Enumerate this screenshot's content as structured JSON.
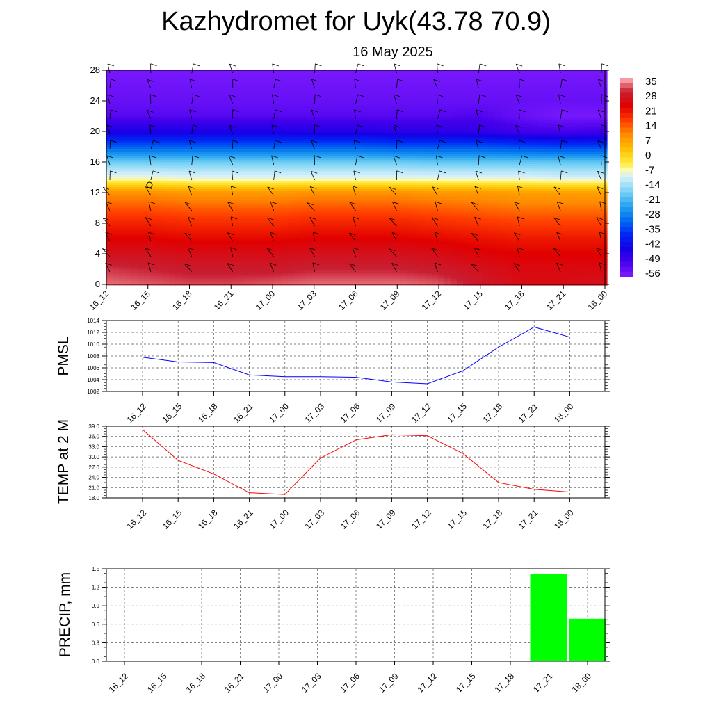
{
  "title": "Kazhydromet for Uyk(43.78 70.9)",
  "subtitle": "16 May 2025",
  "chart_data": [
    {
      "type": "heatmap",
      "name": "temperature-height-section",
      "x_categories": [
        "16_12",
        "16_15",
        "16_18",
        "16_21",
        "17_00",
        "17_03",
        "17_06",
        "17_09",
        "17_12",
        "17_15",
        "17_18",
        "17_21",
        "18_00"
      ],
      "y_ticks": [
        0,
        4,
        8,
        12,
        16,
        20,
        24,
        28
      ],
      "ylim": [
        0,
        28
      ],
      "colorbar": {
        "labels": [
          "35",
          "28",
          "21",
          "14",
          "7",
          "0",
          "-7",
          "-14",
          "-21",
          "-28",
          "-35",
          "-42",
          "-49",
          "-56"
        ],
        "range": [
          -63,
          35
        ]
      },
      "levels": [
        0,
        2,
        4,
        6,
        8,
        10,
        12,
        14,
        16,
        18,
        20,
        22,
        24,
        26,
        28
      ],
      "values": [
        [
          32,
          31,
          30,
          30,
          31,
          32,
          32,
          32,
          31,
          27,
          24,
          24,
          25
        ],
        [
          29,
          28,
          27,
          27,
          27,
          28,
          28,
          28,
          27,
          25,
          23,
          23,
          23
        ],
        [
          25,
          25,
          24,
          24,
          24,
          25,
          25,
          25,
          24,
          22,
          21,
          21,
          21
        ],
        [
          21,
          21,
          20,
          20,
          20,
          21,
          21,
          21,
          20,
          19,
          18,
          18,
          18
        ],
        [
          17,
          17,
          16,
          16,
          16,
          17,
          17,
          17,
          16,
          15,
          14,
          14,
          14
        ],
        [
          12,
          12,
          11,
          11,
          11,
          12,
          12,
          12,
          11,
          10,
          9,
          9,
          9
        ],
        [
          6,
          6,
          5,
          5,
          5,
          6,
          6,
          6,
          5,
          5,
          4,
          4,
          4
        ],
        [
          -12,
          -12,
          -13,
          -13,
          -13,
          -13,
          -13,
          -13,
          -13,
          -13,
          -13,
          -14,
          -14
        ],
        [
          -22,
          -22,
          -22,
          -22,
          -22,
          -22,
          -22,
          -22,
          -23,
          -23,
          -23,
          -23,
          -23
        ],
        [
          -37,
          -37,
          -37,
          -37,
          -37,
          -37,
          -37,
          -38,
          -38,
          -38,
          -39,
          -40,
          -40
        ],
        [
          -50,
          -50,
          -50,
          -50,
          -50,
          -51,
          -51,
          -52,
          -52,
          -53,
          -55,
          -56,
          -55
        ],
        [
          -58,
          -58,
          -58,
          -58,
          -58,
          -58,
          -58,
          -58,
          -58,
          -57,
          -60,
          -62,
          -62
        ],
        [
          -60,
          -60,
          -60,
          -60,
          -60,
          -60,
          -60,
          -60,
          -60,
          -60,
          -60,
          -60,
          -60
        ],
        [
          -61,
          -61,
          -61,
          -61,
          -61,
          -61,
          -61,
          -61,
          -61,
          -61,
          -61,
          -61,
          -61
        ],
        [
          -62,
          -62,
          -62,
          -62,
          -62,
          -62,
          -62,
          -62,
          -62,
          -62,
          -62,
          -62,
          -62
        ]
      ]
    },
    {
      "type": "line",
      "ylabel": "PMSL",
      "categories": [
        "16_12",
        "16_15",
        "16_18",
        "16_21",
        "17_00",
        "17_03",
        "17_06",
        "17_09",
        "17_12",
        "17_15",
        "17_18",
        "17_21",
        "18_00"
      ],
      "values": [
        1007.8,
        1007.0,
        1006.9,
        1004.8,
        1004.5,
        1004.5,
        1004.4,
        1003.6,
        1003.3,
        1005.5,
        1009.5,
        1012.9,
        1011.2
      ],
      "y_ticks": [
        "1002",
        "1004",
        "1006",
        "1008",
        "1010",
        "1012",
        "1014"
      ],
      "ylim": [
        1002,
        1014
      ],
      "color": "#0000ff",
      "grid": true
    },
    {
      "type": "line",
      "ylabel": "TEMP at 2 M",
      "categories": [
        "16_12",
        "16_15",
        "16_18",
        "16_21",
        "17_00",
        "17_03",
        "17_06",
        "17_09",
        "17_12",
        "17_15",
        "17_18",
        "17_21",
        "18_00"
      ],
      "values": [
        38.0,
        29.0,
        25.0,
        19.5,
        19.0,
        29.7,
        35.0,
        36.5,
        36.2,
        31.0,
        22.5,
        20.5,
        19.7
      ],
      "y_ticks": [
        "18.0",
        "21.0",
        "24.0",
        "27.0",
        "30.0",
        "33.0",
        "36.0",
        "39.0"
      ],
      "ylim": [
        18,
        39
      ],
      "color": "#ff0000",
      "grid": true
    },
    {
      "type": "bar",
      "ylabel": "PRECIP, mm",
      "categories": [
        "16_12",
        "16_15",
        "16_18",
        "16_21",
        "17_00",
        "17_03",
        "17_06",
        "17_09",
        "17_12",
        "17_15",
        "17_18",
        "17_21",
        "18_00"
      ],
      "values": [
        0,
        0,
        0,
        0,
        0,
        0,
        0,
        0,
        0,
        0,
        0,
        1.41,
        0.69
      ],
      "y_ticks": [
        "0.0",
        "0.3",
        "0.6",
        "0.9",
        "1.2",
        "1.5"
      ],
      "ylim": [
        0,
        1.5
      ],
      "color": "#00ff00",
      "grid": true
    }
  ]
}
